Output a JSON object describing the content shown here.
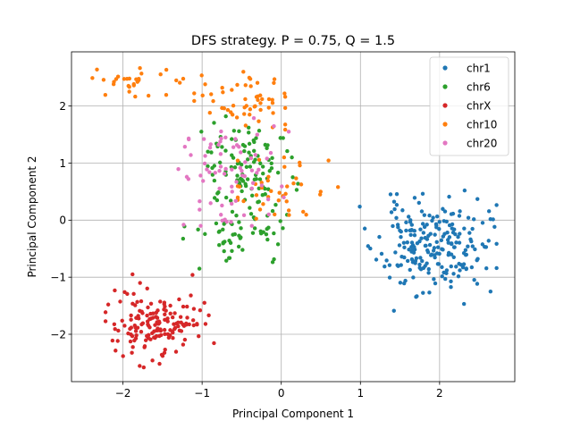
{
  "chart_data": {
    "type": "scatter",
    "title": "DFS strategy. P = 0.75, Q = 1.5",
    "xlabel": "Principal Component 1",
    "ylabel": "Principal Component 2",
    "xlim": [
      -2.65,
      2.95
    ],
    "ylim": [
      -2.83,
      2.95
    ],
    "xticks": [
      -2,
      -1,
      0,
      1,
      2
    ],
    "yticks": [
      -2,
      -1,
      0,
      1,
      2
    ],
    "grid": true,
    "legend_position": "top-right",
    "series": [
      {
        "name": "chr1",
        "color": "#1f77b4",
        "clusters": [
          {
            "center": [
              1.9,
              -0.45
            ],
            "spread": [
              0.34,
              0.4
            ],
            "count": 220,
            "seed": 11,
            "range_x": [
              0.98,
              2.72
            ],
            "range_y": [
              -1.72,
              0.52
            ]
          }
        ]
      },
      {
        "name": "chr6",
        "color": "#2ca02c",
        "clusters": [
          {
            "center": [
              -0.45,
              0.9
            ],
            "spread": [
              0.3,
              0.45
            ],
            "count": 110,
            "seed": 23,
            "range_x": [
              -1.35,
              0.25
            ],
            "range_y": [
              -0.2,
              2.05
            ]
          },
          {
            "center": [
              -0.5,
              -0.25
            ],
            "spread": [
              0.3,
              0.25
            ],
            "count": 50,
            "seed": 29,
            "range_x": [
              -1.25,
              0.25
            ],
            "range_y": [
              -0.85,
              0.3
            ]
          }
        ]
      },
      {
        "name": "chrX",
        "color": "#d62728",
        "clusters": [
          {
            "center": [
              -1.55,
              -1.8
            ],
            "spread": [
              0.28,
              0.3
            ],
            "count": 160,
            "seed": 37,
            "range_x": [
              -2.22,
              -0.85
            ],
            "range_y": [
              -2.58,
              -0.95
            ]
          }
        ]
      },
      {
        "name": "chr10",
        "color": "#ff7f0e",
        "clusters": [
          {
            "center": [
              -1.75,
              2.4
            ],
            "spread": [
              0.3,
              0.16
            ],
            "count": 30,
            "seed": 41,
            "range_x": [
              -2.4,
              -1.15
            ],
            "range_y": [
              2.05,
              2.75
            ]
          },
          {
            "center": [
              -0.45,
              2.05
            ],
            "spread": [
              0.35,
              0.3
            ],
            "count": 55,
            "seed": 43,
            "range_x": [
              -1.1,
              0.05
            ],
            "range_y": [
              1.3,
              2.6
            ]
          },
          {
            "center": [
              0.0,
              0.5
            ],
            "spread": [
              0.35,
              0.3
            ],
            "count": 40,
            "seed": 47,
            "range_x": [
              -0.55,
              0.8
            ],
            "range_y": [
              -0.4,
              1.1
            ]
          }
        ]
      },
      {
        "name": "chr20",
        "color": "#e377c2",
        "clusters": [
          {
            "center": [
              -0.7,
              0.75
            ],
            "spread": [
              0.35,
              0.45
            ],
            "count": 75,
            "seed": 53,
            "range_x": [
              -1.3,
              0.2
            ],
            "range_y": [
              -0.1,
              1.9
            ]
          }
        ]
      }
    ]
  }
}
